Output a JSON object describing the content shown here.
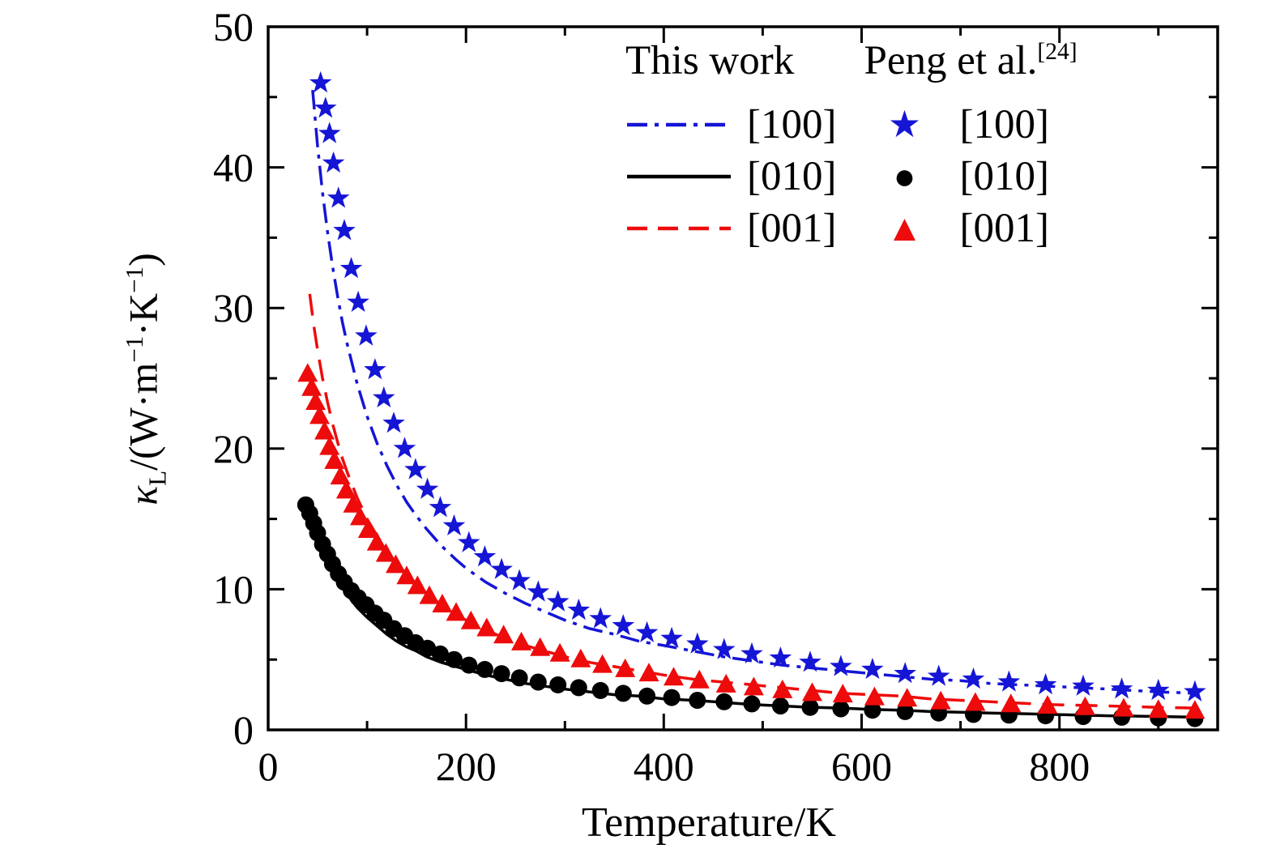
{
  "figure": {
    "background": "#ffffff",
    "frame_color": "#000000"
  },
  "chart_data": {
    "type": "line+scatter",
    "title": "",
    "xlabel": "Temperature/K",
    "ylabel": {
      "sym": "κ",
      "sub": "L",
      "p1": "/(W·m",
      "s1": "−1",
      "p2": "·K",
      "s2": "−1",
      "p3": ")"
    },
    "xlim": [
      0,
      960
    ],
    "ylim": [
      0,
      50
    ],
    "xticks": [
      0,
      200,
      400,
      600,
      800
    ],
    "yticks": [
      0,
      10,
      20,
      30,
      40,
      50
    ],
    "x_minor_step": 100,
    "y_minor_step": 5,
    "grid": false,
    "legend": {
      "position": "top-right-inside",
      "col1_header": "This work",
      "col2_header": "Peng et al.",
      "col2_ref": "[24]",
      "col1_entries": [
        "[100]",
        "[010]",
        "[001]"
      ],
      "col2_entries": [
        "[100]",
        "[010]",
        "[001]"
      ],
      "markers": [
        "★",
        "●",
        "▲"
      ]
    },
    "series": [
      {
        "name": "this-work-100",
        "label": "[100]",
        "type": "line",
        "style": "dashdot",
        "color": "#1515d6",
        "x": [
          45,
          50,
          55,
          60,
          65,
          70,
          75,
          80,
          90,
          100,
          110,
          120,
          130,
          140,
          150,
          160,
          175,
          190,
          200,
          220,
          240,
          260,
          280,
          300,
          325,
          350,
          375,
          400,
          430,
          460,
          490,
          520,
          550,
          580,
          610,
          640,
          670,
          700,
          730,
          760,
          790,
          820,
          850,
          875,
          900,
          940
        ],
        "y": [
          45.5,
          41.5,
          38.2,
          35.4,
          33,
          30.9,
          29,
          27.4,
          24.6,
          22.3,
          20.4,
          18.8,
          17.4,
          16.2,
          15.2,
          14.3,
          13.1,
          12.1,
          11.5,
          10.5,
          9.7,
          9,
          8.4,
          7.8,
          7.2,
          6.8,
          6.3,
          6,
          5.6,
          5.2,
          4.9,
          4.6,
          4.4,
          4.2,
          4,
          3.8,
          3.6,
          3.5,
          3.3,
          3.2,
          3.1,
          3,
          2.9,
          2.8,
          2.7,
          2.6
        ]
      },
      {
        "name": "this-work-010",
        "label": "[010]",
        "type": "line",
        "style": "solid",
        "color": "#000000",
        "x": [
          40,
          45,
          50,
          55,
          60,
          65,
          70,
          75,
          80,
          90,
          100,
          110,
          120,
          130,
          140,
          150,
          160,
          175,
          190,
          200,
          220,
          240,
          260,
          280,
          300,
          325,
          350,
          375,
          400,
          430,
          460,
          490,
          520,
          550,
          580,
          610,
          640,
          670,
          700,
          730,
          760,
          790,
          820,
          850,
          875,
          900,
          940
        ],
        "y": [
          16,
          14.8,
          13.8,
          12.9,
          12.1,
          11.4,
          10.7,
          10.1,
          9.6,
          8.7,
          8,
          7.4,
          6.8,
          6.3,
          5.9,
          5.6,
          5.2,
          4.8,
          4.5,
          4.3,
          3.9,
          3.6,
          3.3,
          3.1,
          2.9,
          2.7,
          2.5,
          2.4,
          2.2,
          2.1,
          1.95,
          1.8,
          1.7,
          1.6,
          1.55,
          1.45,
          1.4,
          1.3,
          1.25,
          1.2,
          1.15,
          1.1,
          1.05,
          1,
          0.98,
          0.95,
          0.9
        ]
      },
      {
        "name": "this-work-001",
        "label": "[001]",
        "type": "line",
        "style": "dashed",
        "color": "#ee0b0b",
        "x": [
          42,
          46,
          50,
          55,
          60,
          65,
          70,
          75,
          80,
          90,
          100,
          110,
          120,
          130,
          140,
          150,
          160,
          175,
          190,
          200,
          220,
          240,
          260,
          280,
          300,
          325,
          350,
          375,
          400,
          430,
          460,
          490,
          520,
          550,
          580,
          610,
          640,
          670,
          700,
          730,
          760,
          790,
          820,
          850,
          875,
          900,
          940
        ],
        "y": [
          31,
          28.8,
          27,
          25,
          23.3,
          21.8,
          20.5,
          19.3,
          18.3,
          16.5,
          15,
          13.8,
          12.7,
          11.8,
          11,
          10.3,
          9.7,
          8.9,
          8.2,
          7.8,
          7.1,
          6.5,
          6,
          5.6,
          5.2,
          4.8,
          4.5,
          4.2,
          3.9,
          3.6,
          3.4,
          3.2,
          3,
          2.8,
          2.6,
          2.5,
          2.4,
          2.2,
          2.1,
          2,
          1.9,
          1.8,
          1.75,
          1.7,
          1.65,
          1.6,
          1.55
        ]
      },
      {
        "name": "peng-100",
        "label": "[100]",
        "type": "scatter",
        "marker": "star",
        "color": "#1515d6",
        "x": [
          53,
          58,
          62,
          66,
          71,
          77,
          84,
          91,
          99,
          108,
          117,
          127,
          138,
          149,
          161,
          174,
          188,
          203,
          219,
          236,
          254,
          273,
          293,
          314,
          336,
          359,
          383,
          408,
          434,
          461,
          489,
          518,
          548,
          579,
          611,
          644,
          678,
          713,
          749,
          786,
          824,
          863,
          900,
          937
        ],
        "y": [
          46,
          44.2,
          42.4,
          40.3,
          37.8,
          35.5,
          32.8,
          30.4,
          28,
          25.6,
          23.6,
          21.8,
          20,
          18.5,
          17.1,
          15.8,
          14.5,
          13.3,
          12.3,
          11.4,
          10.6,
          9.8,
          9.1,
          8.5,
          7.9,
          7.4,
          6.9,
          6.5,
          6.1,
          5.7,
          5.4,
          5.1,
          4.8,
          4.5,
          4.3,
          4,
          3.8,
          3.6,
          3.4,
          3.2,
          3.1,
          2.9,
          2.8,
          2.7
        ]
      },
      {
        "name": "peng-010",
        "label": "[010]",
        "type": "scatter",
        "marker": "circle",
        "color": "#000000",
        "x": [
          38,
          42,
          46,
          50,
          55,
          60,
          65,
          71,
          77,
          84,
          91,
          99,
          108,
          117,
          127,
          138,
          149,
          161,
          174,
          188,
          203,
          219,
          236,
          254,
          273,
          293,
          314,
          336,
          359,
          383,
          408,
          434,
          461,
          489,
          518,
          548,
          579,
          611,
          644,
          678,
          713,
          749,
          786,
          824,
          863,
          900,
          937
        ],
        "y": [
          16,
          15.4,
          14.7,
          14,
          13.2,
          12.5,
          11.8,
          11.1,
          10.5,
          9.9,
          9.4,
          8.9,
          8.3,
          7.8,
          7.2,
          6.7,
          6.2,
          5.8,
          5.4,
          5,
          4.6,
          4.3,
          4,
          3.7,
          3.4,
          3.2,
          3,
          2.8,
          2.6,
          2.4,
          2.3,
          2.1,
          2,
          1.85,
          1.7,
          1.6,
          1.5,
          1.4,
          1.3,
          1.2,
          1.1,
          1.05,
          1,
          0.95,
          0.9,
          0.85,
          0.8
        ]
      },
      {
        "name": "peng-001",
        "label": "[001]",
        "type": "scatter",
        "marker": "triangle",
        "color": "#ee0b0b",
        "x": [
          40,
          44,
          48,
          52,
          57,
          62,
          67,
          73,
          79,
          86,
          93,
          101,
          110,
          119,
          129,
          140,
          151,
          163,
          176,
          190,
          205,
          221,
          238,
          256,
          275,
          295,
          316,
          338,
          361,
          385,
          410,
          436,
          463,
          491,
          520,
          550,
          581,
          613,
          646,
          680,
          715,
          751,
          788,
          826,
          865,
          900,
          937
        ],
        "y": [
          25.3,
          24.3,
          23.3,
          22.3,
          21.2,
          20.1,
          19.1,
          18,
          17,
          16,
          15.1,
          14.2,
          13.3,
          12.5,
          11.7,
          10.9,
          10.2,
          9.5,
          8.9,
          8.3,
          7.7,
          7.2,
          6.7,
          6.2,
          5.8,
          5.4,
          5,
          4.6,
          4.3,
          4,
          3.7,
          3.5,
          3.2,
          3,
          2.8,
          2.6,
          2.5,
          2.3,
          2.2,
          2,
          1.9,
          1.8,
          1.7,
          1.6,
          1.5,
          1.4,
          1.35
        ]
      }
    ]
  }
}
